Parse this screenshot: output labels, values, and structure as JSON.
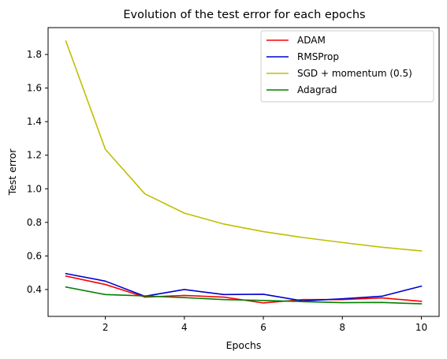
{
  "chart_data": {
    "type": "line",
    "title": "Evolution of the test error for each epochs",
    "xlabel": "Epochs",
    "ylabel": "Test error",
    "xlim": [
      0.55,
      10.45
    ],
    "ylim": [
      0.24,
      1.96
    ],
    "xticks": [
      2,
      4,
      6,
      8,
      10
    ],
    "yticks": [
      0.4,
      0.6,
      0.8,
      1.0,
      1.2,
      1.4,
      1.6,
      1.8
    ],
    "ytick_labels": [
      "0.4",
      "0.6",
      "0.8",
      "1.0",
      "1.2",
      "1.4",
      "1.6",
      "1.8"
    ],
    "grid": false,
    "legend_position": "top-right",
    "x": [
      1,
      2,
      3,
      4,
      5,
      6,
      7,
      8,
      9,
      10
    ],
    "series": [
      {
        "name": "ADAM",
        "color": "#ff0000",
        "values": [
          0.48,
          0.43,
          0.355,
          0.365,
          0.355,
          0.32,
          0.34,
          0.34,
          0.35,
          0.33
        ]
      },
      {
        "name": "RMSProp",
        "color": "#0000cc",
        "values": [
          0.495,
          0.45,
          0.36,
          0.4,
          0.37,
          0.372,
          0.332,
          0.345,
          0.36,
          0.42
        ]
      },
      {
        "name": "SGD + momentum (0.5)",
        "color": "#bfbf00",
        "values": [
          1.88,
          1.235,
          0.97,
          0.855,
          0.79,
          0.745,
          0.71,
          0.68,
          0.652,
          0.63
        ]
      },
      {
        "name": "Adagrad",
        "color": "#008000",
        "values": [
          0.415,
          0.37,
          0.362,
          0.352,
          0.34,
          0.335,
          0.328,
          0.322,
          0.323,
          0.315
        ]
      }
    ]
  }
}
